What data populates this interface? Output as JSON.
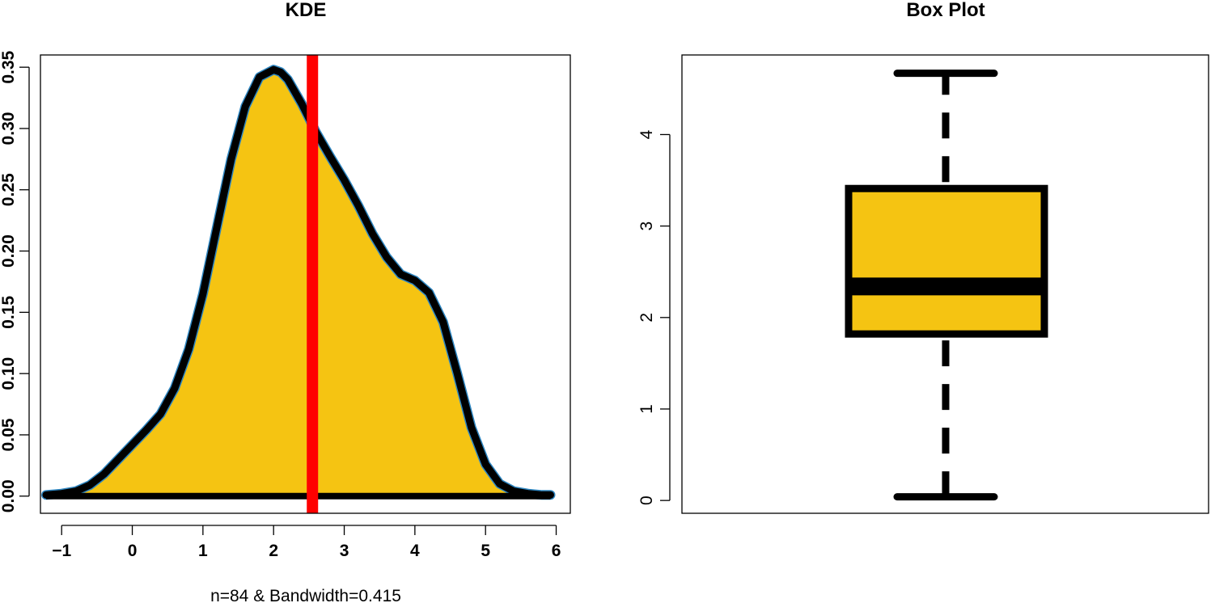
{
  "chart_data": [
    {
      "type": "area",
      "title": "KDE",
      "xlabel": "n=84 & Bandwidth=0.415",
      "ylabel": "",
      "xlim": [
        -1.3,
        6.2
      ],
      "ylim": [
        -0.014,
        0.36
      ],
      "x_ticks": [
        -1,
        0,
        1,
        2,
        3,
        4,
        5,
        6
      ],
      "y_ticks": [
        0.0,
        0.05,
        0.1,
        0.15,
        0.2,
        0.25,
        0.3,
        0.35
      ],
      "x_tick_labels": [
        "−1",
        "0",
        "1",
        "2",
        "3",
        "4",
        "5",
        "6"
      ],
      "y_tick_labels": [
        "0.00",
        "0.05",
        "0.10",
        "0.15",
        "0.20",
        "0.25",
        "0.30",
        "0.35"
      ],
      "fill_color": "#F5C412",
      "line_color": "#000000",
      "outline_color": "#2E86C1",
      "vline": {
        "x": 2.55,
        "color": "#FF0000"
      },
      "grid": false,
      "series": [
        {
          "x": [
            -1.22,
            -1.0,
            -0.8,
            -0.6,
            -0.4,
            -0.2,
            0.0,
            0.2,
            0.4,
            0.6,
            0.8,
            1.0,
            1.2,
            1.4,
            1.6,
            1.8,
            2.0,
            2.1,
            2.2,
            2.4,
            2.6,
            2.8,
            3.0,
            3.2,
            3.4,
            3.6,
            3.8,
            4.0,
            4.2,
            4.4,
            4.6,
            4.8,
            5.0,
            5.2,
            5.4,
            5.6,
            5.8,
            5.92
          ],
          "y": [
            0.001,
            0.002,
            0.004,
            0.009,
            0.018,
            0.03,
            0.042,
            0.054,
            0.067,
            0.088,
            0.12,
            0.165,
            0.22,
            0.275,
            0.318,
            0.342,
            0.348,
            0.346,
            0.34,
            0.32,
            0.297,
            0.277,
            0.258,
            0.237,
            0.214,
            0.195,
            0.181,
            0.176,
            0.166,
            0.142,
            0.1,
            0.056,
            0.026,
            0.01,
            0.004,
            0.002,
            0.001,
            0.001
          ]
        }
      ]
    },
    {
      "type": "box",
      "title": "Box Plot",
      "xlabel": "",
      "ylabel": "",
      "ylim": [
        -0.14,
        4.87
      ],
      "y_ticks": [
        0,
        1,
        2,
        3,
        4
      ],
      "y_tick_labels": [
        "0",
        "1",
        "2",
        "3",
        "4"
      ],
      "fill_color": "#F5C412",
      "grid": false,
      "box": {
        "min": 0.04,
        "q1": 1.82,
        "median": 2.34,
        "q3": 3.41,
        "max": 4.67
      }
    }
  ]
}
